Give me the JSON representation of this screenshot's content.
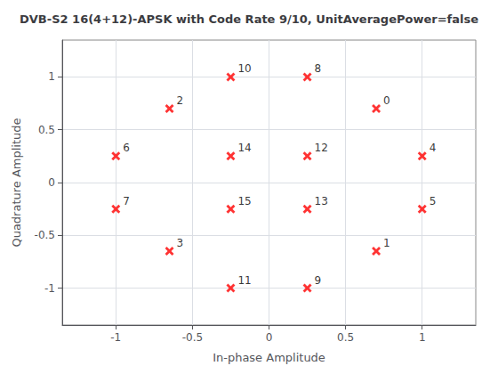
{
  "chart_data": {
    "type": "scatter",
    "title": "DVB-S2 16(4+12)-APSK with Code Rate 9/10, UnitAveragePower=false",
    "xlabel": "In-phase Amplitude",
    "ylabel": "Quadrature Amplitude",
    "x": [
      0.7,
      0.7,
      -0.65,
      -0.65,
      1.0,
      1.0,
      -1.0,
      -1.0,
      0.25,
      0.25,
      -0.25,
      -0.25,
      0.25,
      0.25,
      -0.25,
      -0.25
    ],
    "y": [
      0.7,
      -0.65,
      0.7,
      -0.65,
      0.25,
      -0.25,
      0.25,
      -0.25,
      1.0,
      -1.0,
      1.0,
      -1.0,
      0.25,
      -0.25,
      0.25,
      -0.25
    ],
    "labels": [
      "0",
      "1",
      "2",
      "3",
      "4",
      "5",
      "6",
      "7",
      "8",
      "9",
      "10",
      "11",
      "12",
      "13",
      "14",
      "15"
    ],
    "color": "#FF0000",
    "marker": "x",
    "xlim": [
      -1.35,
      1.35
    ],
    "ylim": [
      -1.35,
      1.35
    ],
    "xticks": [
      -1,
      -0.5,
      0,
      0.5,
      1
    ],
    "yticks": [
      -1,
      -0.5,
      0,
      0.5,
      1
    ],
    "grid": true
  }
}
